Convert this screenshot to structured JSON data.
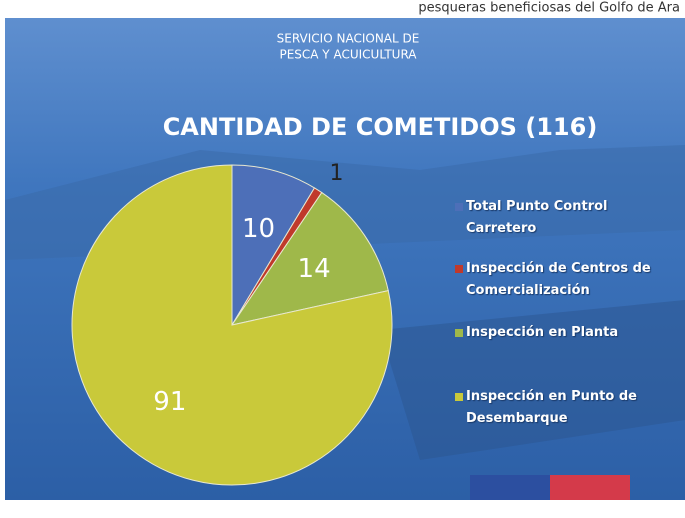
{
  "caption": "pesqueras beneficiosas del Golfo de Ara",
  "header": {
    "lines": [
      "SERVICIO NACIONAL DE",
      "PESCA Y ACUICULTURA"
    ]
  },
  "chart_data": {
    "type": "pie",
    "title": "CANTIDAD DE COMETIDOS (116)",
    "categories": [
      "Total Punto Control Carretero",
      "Inspección de Centros de Comercialización",
      "Inspección en Planta",
      "Inspección en Punto de Desembarque"
    ],
    "values": [
      10,
      1,
      14,
      91
    ],
    "colors": [
      "#4d6fb8",
      "#c0392b",
      "#9fb84a",
      "#c9c93a"
    ],
    "legend": "right"
  }
}
